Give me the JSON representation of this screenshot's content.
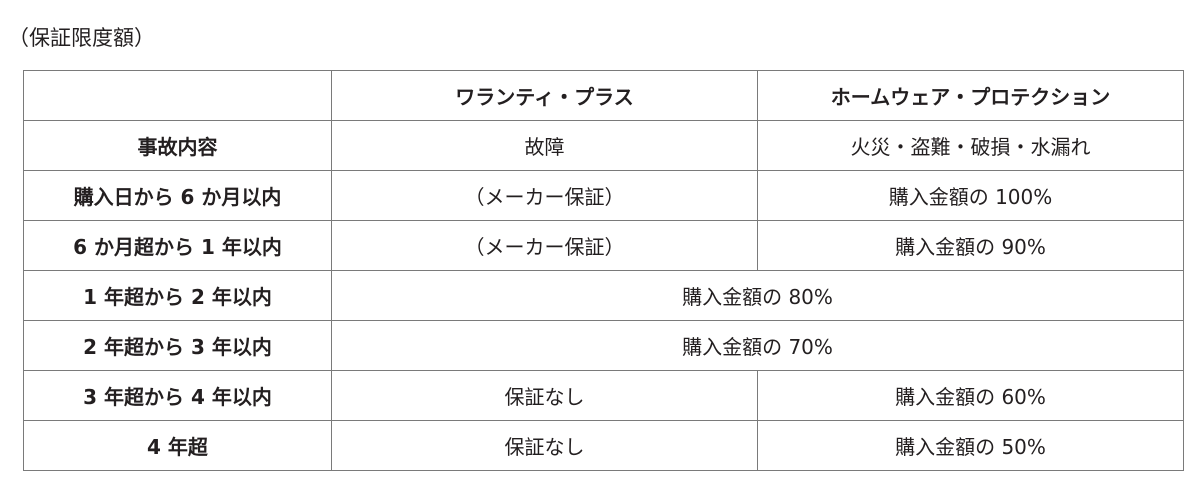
{
  "caption": "（保証限度額）",
  "headers": [
    "",
    "ワランティ・プラス",
    "ホームウェア・プロテクション"
  ],
  "rows": [
    {
      "label": "事故内容",
      "cells": [
        "故障",
        "火災・盗難・破損・水漏れ"
      ]
    },
    {
      "label": "購入日から 6 か月以内",
      "cells": [
        "（メーカー保証）",
        "購入金額の 100%"
      ]
    },
    {
      "label": "6 か月超から 1 年以内",
      "cells": [
        "（メーカー保証）",
        "購入金額の 90%"
      ]
    },
    {
      "label": "1 年超から 2 年以内",
      "merged": "購入金額の 80%"
    },
    {
      "label": "2 年超から 3 年以内",
      "merged": "購入金額の 70%"
    },
    {
      "label": "3 年超から 4 年以内",
      "cells": [
        "保証なし",
        "購入金額の 60%"
      ]
    },
    {
      "label": "4 年超",
      "cells": [
        "保証なし",
        "購入金額の 50%"
      ]
    }
  ]
}
